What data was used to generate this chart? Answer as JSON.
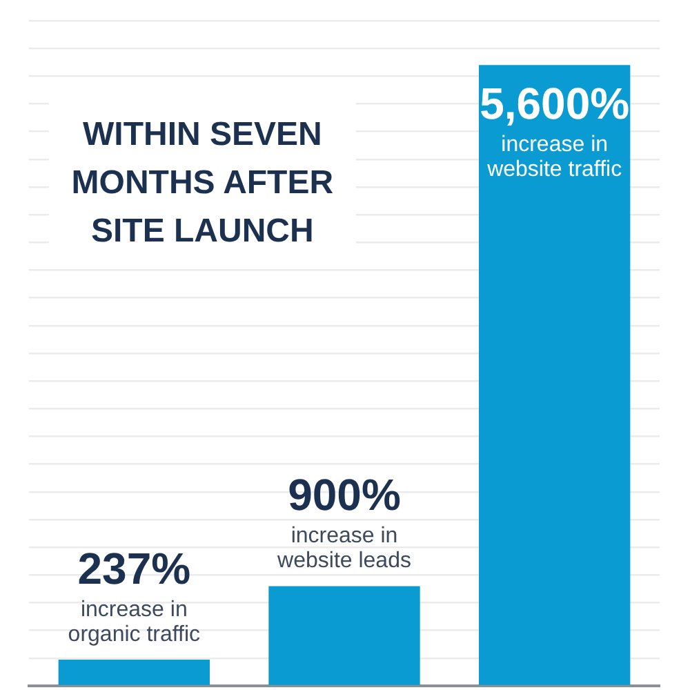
{
  "chart_data": {
    "type": "bar",
    "title": "WITHIN SEVEN MONTHS AFTER SITE LAUNCH",
    "categories": [
      "increase in organic traffic",
      "increase in website leads",
      "increase in website traffic"
    ],
    "values": [
      237,
      900,
      5600
    ],
    "value_labels": [
      "237%",
      "900%",
      "5,600%"
    ],
    "color": "#0b9bd3",
    "ylim": [
      0,
      6000
    ],
    "yticks": [
      {
        "value": 0,
        "label": null
      },
      {
        "value": 250,
        "label": null
      },
      {
        "value": 500,
        "label": null
      },
      {
        "value": 750,
        "label": null
      },
      {
        "value": 1000,
        "label": null
      },
      {
        "value": 1250,
        "label": null
      },
      {
        "value": 1500,
        "label": null
      },
      {
        "value": 1750,
        "label": null
      },
      {
        "value": 2000,
        "label": null
      },
      {
        "value": 2250,
        "label": null
      },
      {
        "value": 2500,
        "label": null
      },
      {
        "value": 2750,
        "label": null
      },
      {
        "value": 3000,
        "label": null
      },
      {
        "value": 3250,
        "label": null
      },
      {
        "value": 3500,
        "label": null
      },
      {
        "value": 3750,
        "label": null
      },
      {
        "value": 4000,
        "label": null
      },
      {
        "value": 4250,
        "label": null
      },
      {
        "value": 4500,
        "label": null
      },
      {
        "value": 4750,
        "label": null
      },
      {
        "value": 5000,
        "label": null
      },
      {
        "value": 5250,
        "label": null
      },
      {
        "value": 5500,
        "label": null
      },
      {
        "value": 5750,
        "label": null
      },
      {
        "value": 6000,
        "label": null
      }
    ],
    "grid": "y",
    "tick_labels": false
  }
}
